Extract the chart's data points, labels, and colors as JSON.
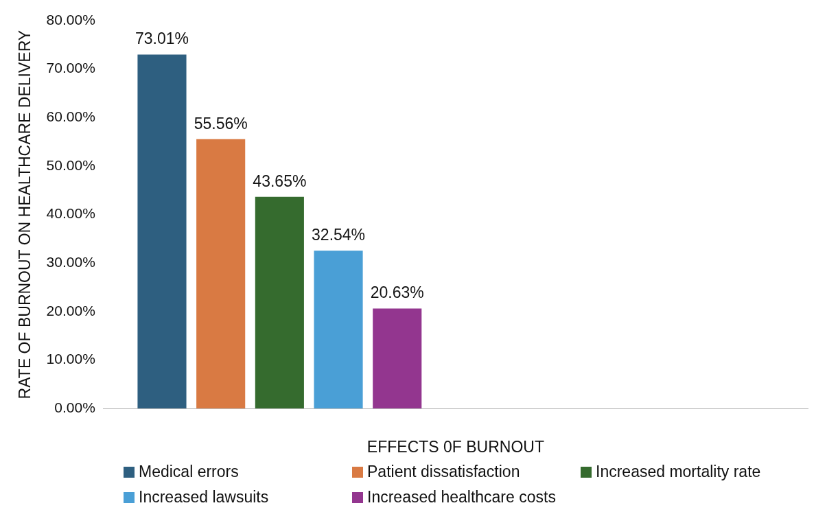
{
  "chart_data": {
    "type": "bar",
    "xlabel": "EFFECTS 0F BURNOUT",
    "ylabel": "RATE OF BURNOUT ON HEALTHCARE DELIVERY",
    "categories": [
      null,
      null
    ],
    "series": [
      {
        "name": "Medical errors",
        "color": "#2e5f80",
        "values": [
          73.01,
          null
        ],
        "value_labels": [
          "73.01%",
          null
        ]
      },
      {
        "name": "Patient dissatisfaction",
        "color": "#d97a43",
        "values": [
          55.56,
          null
        ],
        "value_labels": [
          "55.56%",
          null
        ]
      },
      {
        "name": "Increased mortality rate",
        "color": "#356b2e",
        "values": [
          43.65,
          null
        ],
        "value_labels": [
          "43.65%",
          null
        ]
      },
      {
        "name": "Increased lawsuits",
        "color": "#4a9fd6",
        "values": [
          32.54,
          null
        ],
        "value_labels": [
          "32.54%",
          null
        ]
      },
      {
        "name": "Increased healthcare costs",
        "color": "#93368f",
        "values": [
          20.63,
          null
        ],
        "value_labels": [
          "20.63%",
          null
        ]
      }
    ],
    "ylim": [
      0,
      80
    ],
    "yticks": [
      {
        "value": 0,
        "label": "0.00%"
      },
      {
        "value": 10,
        "label": "10.00%"
      },
      {
        "value": 20,
        "label": "20.00%"
      },
      {
        "value": 30,
        "label": "30.00%"
      },
      {
        "value": 40,
        "label": "40.00%"
      },
      {
        "value": 50,
        "label": "50.00%"
      },
      {
        "value": 60,
        "label": "60.00%"
      },
      {
        "value": 70,
        "label": "70.00%"
      },
      {
        "value": 80,
        "label": "80.00%"
      }
    ],
    "grid": false,
    "legend": "bottom"
  }
}
